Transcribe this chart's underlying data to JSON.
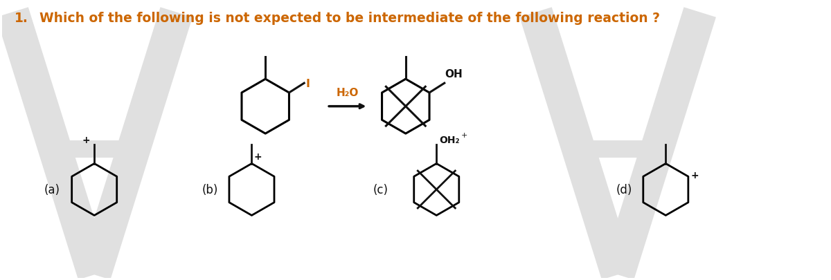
{
  "title_num": "1.",
  "title_text": "Which of the following is not expected to be intermediate of the following reaction ?",
  "title_color": "#cc6600",
  "title_fontsize": 13.5,
  "background_color": "#ffffff",
  "fig_width": 12.0,
  "fig_height": 4.06,
  "h2o_label": "H₂O",
  "I_label": "I",
  "OH_label": "OH",
  "OH2_label": "OH₂",
  "plus": "+",
  "options": [
    "(a)",
    "(b)",
    "(c)",
    "(d)"
  ],
  "watermark_color": "#e0e0e0",
  "line_color": "#111111"
}
